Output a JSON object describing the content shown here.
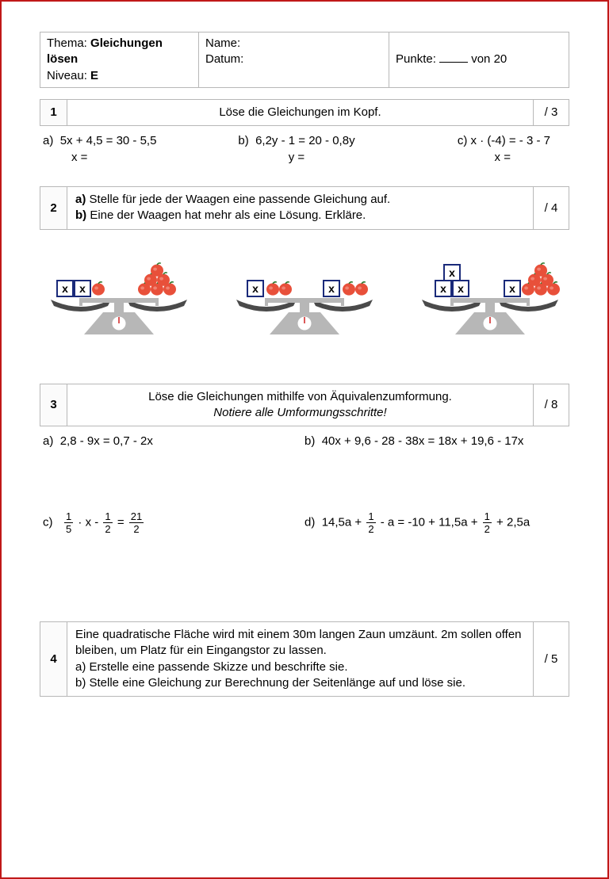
{
  "header": {
    "thema_label": "Thema:",
    "thema_value": "Gleichungen lösen",
    "niveau_label": "Niveau:",
    "niveau_value": "E",
    "name_label": "Name:",
    "datum_label": "Datum:",
    "punkte_prefix": "Punkte:",
    "punkte_suffix": "von 20"
  },
  "task1": {
    "num": "1",
    "title": "Löse die Gleichungen im Kopf.",
    "points": "/ 3",
    "a_label": "a)",
    "a_eq": "5x + 4,5 = 30 - 5,5",
    "a_ans": "x =",
    "b_label": "b)",
    "b_eq": "6,2y - 1 = 20 - 0,8y",
    "b_ans": "y =",
    "c_label": "c)",
    "c_eq": "x · (-4) = - 3 - 7",
    "c_ans": "x ="
  },
  "task2": {
    "num": "2",
    "line_a_label": "a)",
    "line_a": "Stelle für jede der Waagen eine passende Gleichung auf.",
    "line_b_label": "b)",
    "line_b": "Eine der Waagen hat mehr als eine Lösung. Erkläre.",
    "points": "/ 4",
    "box_label": "x",
    "colors": {
      "apple": "#e8503a",
      "apple_hi": "#f08272",
      "leaf": "#2e7a2e",
      "box_fill": "#ffffff",
      "box_stroke": "#1a2a7a",
      "pan": "#4a4a4a",
      "base": "#b7b7b7",
      "dial_bg": "#ffffff",
      "needle": "#d02020"
    },
    "scales": [
      {
        "left": {
          "boxes": 2,
          "apples": 1,
          "stack": false
        },
        "right": {
          "boxes": 0,
          "apples": 6
        }
      },
      {
        "left": {
          "boxes": 1,
          "apples": 2,
          "stack": false
        },
        "right": {
          "boxes": 1,
          "apples": 2,
          "stack": false
        }
      },
      {
        "left": {
          "boxes": 3,
          "apples": 0,
          "stack": true
        },
        "right": {
          "boxes": 1,
          "apples": 6,
          "stack": false
        }
      }
    ]
  },
  "task3": {
    "num": "3",
    "title1": "Löse die Gleichungen mithilfe von Äquivalenzumformung.",
    "title2": "Notiere alle Umformungsschritte!",
    "points": "/ 8",
    "a_label": "a)",
    "a_eq": "2,8 - 9x = 0,7 - 2x",
    "b_label": "b)",
    "b_eq": "40x + 9,6 - 28 - 38x = 18x + 19,6 - 17x",
    "c_label": "c)",
    "d_label": "d)",
    "c_frac1_n": "1",
    "c_frac1_d": "5",
    "c_mid1": " · x - ",
    "c_frac2_n": "1",
    "c_frac2_d": "2",
    "c_mid2": " = ",
    "c_frac3_n": "21",
    "c_frac3_d": "2",
    "d_pre": "14,5a + ",
    "d_frac1_n": "1",
    "d_frac1_d": "2",
    "d_mid": " - a = -10 + 11,5a + ",
    "d_frac2_n": "1",
    "d_frac2_d": "2",
    "d_post": " + 2,5a"
  },
  "task4": {
    "num": "4",
    "line1": "Eine quadratische Fläche wird mit einem 30m langen Zaun umzäunt. 2m sollen offen bleiben, um Platz für ein Eingangstor zu lassen.",
    "line_a": " a) Erstelle eine passende Skizze und beschrifte sie.",
    "line_b": " b) Stelle eine Gleichung zur Berechnung der Seitenlänge auf und löse sie.",
    "points": "/ 5"
  }
}
